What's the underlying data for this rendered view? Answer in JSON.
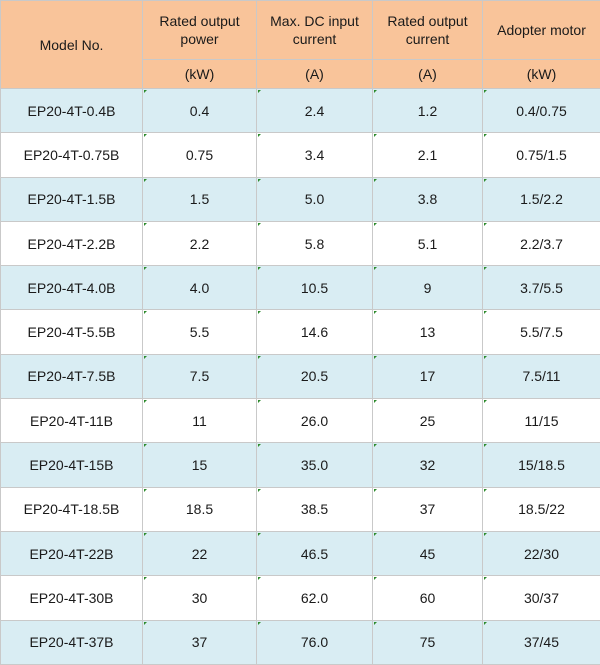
{
  "header": {
    "model": "Model No.",
    "power": "Rated output power",
    "dc_input": "Max. DC input current",
    "out_current": "Rated output current",
    "motor": "Adopter motor",
    "units": {
      "power": "(kW)",
      "dc_input": "(A)",
      "out_current": "(A)",
      "motor": "(kW)"
    }
  },
  "rows": [
    {
      "model": "EP20-4T-0.4B",
      "power": "0.4",
      "dc_input": "2.4",
      "out_current": "1.2",
      "motor": "0.4/0.75"
    },
    {
      "model": "EP20-4T-0.75B",
      "power": "0.75",
      "dc_input": "3.4",
      "out_current": "2.1",
      "motor": "0.75/1.5"
    },
    {
      "model": "EP20-4T-1.5B",
      "power": "1.5",
      "dc_input": "5.0",
      "out_current": "3.8",
      "motor": "1.5/2.2"
    },
    {
      "model": "EP20-4T-2.2B",
      "power": "2.2",
      "dc_input": "5.8",
      "out_current": "5.1",
      "motor": "2.2/3.7"
    },
    {
      "model": "EP20-4T-4.0B",
      "power": "4.0",
      "dc_input": "10.5",
      "out_current": "9",
      "motor": "3.7/5.5"
    },
    {
      "model": "EP20-4T-5.5B",
      "power": "5.5",
      "dc_input": "14.6",
      "out_current": "13",
      "motor": "5.5/7.5"
    },
    {
      "model": "EP20-4T-7.5B",
      "power": "7.5",
      "dc_input": "20.5",
      "out_current": "17",
      "motor": "7.5/11"
    },
    {
      "model": "EP20-4T-11B",
      "power": "11",
      "dc_input": "26.0",
      "out_current": "25",
      "motor": "11/15"
    },
    {
      "model": "EP20-4T-15B",
      "power": "15",
      "dc_input": "35.0",
      "out_current": "32",
      "motor": "15/18.5"
    },
    {
      "model": "EP20-4T-18.5B",
      "power": "18.5",
      "dc_input": "38.5",
      "out_current": "37",
      "motor": "18.5/22"
    },
    {
      "model": "EP20-4T-22B",
      "power": "22",
      "dc_input": "46.5",
      "out_current": "45",
      "motor": "22/30"
    },
    {
      "model": "EP20-4T-30B",
      "power": "30",
      "dc_input": "62.0",
      "out_current": "60",
      "motor": "30/37"
    },
    {
      "model": "EP20-4T-37B",
      "power": "37",
      "dc_input": "76.0",
      "out_current": "75",
      "motor": "37/45"
    }
  ],
  "colors": {
    "header_bg": "#f9c49a",
    "stripe_bg": "#d9edf3",
    "border": "#c9c9c9"
  }
}
